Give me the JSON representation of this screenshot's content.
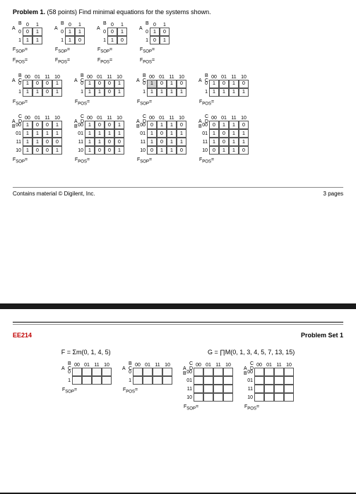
{
  "problem_title_prefix": "Problem 1.",
  "problem_title_rest": " (58 points) Find minimal equations for the systems shown.",
  "labels": {
    "A": "A",
    "B": "B",
    "C": "C",
    "D": "D",
    "AB": "A B",
    "BC": "B C",
    "CD": "C D",
    "Fsop": "F",
    "sop": "SOP",
    "Fpos": "F",
    "pos": "POS",
    "eq": "="
  },
  "cols2": [
    "0",
    "1"
  ],
  "cols4": [
    "00",
    "01",
    "11",
    "10"
  ],
  "rows2": [
    "0",
    "1"
  ],
  "rows4": [
    "00",
    "01",
    "11",
    "10"
  ],
  "kmaps2x2": [
    {
      "data": [
        [
          "0",
          "1"
        ],
        [
          "1",
          "1"
        ]
      ],
      "sh": [
        [
          0,
          0
        ],
        [
          0,
          0
        ]
      ]
    },
    {
      "data": [
        [
          "1",
          "1"
        ],
        [
          "1",
          "0"
        ]
      ],
      "sh": [
        [
          0,
          0
        ],
        [
          0,
          0
        ]
      ]
    },
    {
      "data": [
        [
          "0",
          "1"
        ],
        [
          "1",
          "0"
        ]
      ],
      "sh": [
        [
          0,
          0
        ],
        [
          0,
          0
        ]
      ]
    },
    {
      "data": [
        [
          "1",
          "0"
        ],
        [
          "0",
          "1"
        ]
      ],
      "sh": [
        [
          0,
          0
        ],
        [
          0,
          0
        ]
      ]
    }
  ],
  "kmaps2x4": [
    {
      "data": [
        [
          "1",
          "0",
          "0",
          "1"
        ],
        [
          "1",
          "1",
          "0",
          "1"
        ]
      ],
      "sh": [
        [
          0,
          0,
          0,
          0
        ],
        [
          0,
          0,
          0,
          0
        ]
      ]
    },
    {
      "data": [
        [
          "1",
          "0",
          "0",
          "1"
        ],
        [
          "1",
          "1",
          "0",
          "1"
        ]
      ],
      "sh": [
        [
          0,
          0,
          0,
          0
        ],
        [
          0,
          0,
          0,
          0
        ]
      ]
    },
    {
      "data": [
        [
          "1",
          "0",
          "1",
          "0"
        ],
        [
          "1",
          "1",
          "1",
          "1"
        ]
      ],
      "sh": [
        [
          1,
          0,
          0,
          0
        ],
        [
          0,
          0,
          0,
          0
        ]
      ]
    },
    {
      "data": [
        [
          "1",
          "0",
          "1",
          "0"
        ],
        [
          "1",
          "1",
          "1",
          "1"
        ]
      ],
      "sh": [
        [
          0,
          0,
          0,
          0
        ],
        [
          0,
          0,
          0,
          0
        ]
      ]
    }
  ],
  "kmaps4x4": [
    {
      "data": [
        [
          "1",
          "0",
          "0",
          "1"
        ],
        [
          "1",
          "1",
          "1",
          "1"
        ],
        [
          "1",
          "1",
          "0",
          "0"
        ],
        [
          "1",
          "0",
          "0",
          "1"
        ]
      ],
      "sh": [
        [
          0,
          0,
          0,
          0
        ],
        [
          0,
          0,
          0,
          0
        ],
        [
          0,
          0,
          0,
          0
        ],
        [
          0,
          0,
          0,
          0
        ]
      ]
    },
    {
      "data": [
        [
          "1",
          "0",
          "0",
          "1"
        ],
        [
          "1",
          "1",
          "1",
          "1"
        ],
        [
          "1",
          "1",
          "0",
          "0"
        ],
        [
          "1",
          "0",
          "0",
          "1"
        ]
      ],
      "sh": [
        [
          0,
          0,
          0,
          0
        ],
        [
          0,
          0,
          0,
          0
        ],
        [
          0,
          0,
          0,
          0
        ],
        [
          0,
          0,
          0,
          0
        ]
      ]
    },
    {
      "data": [
        [
          "0",
          "1",
          "1",
          "0"
        ],
        [
          "1",
          "0",
          "1",
          "1"
        ],
        [
          "1",
          "0",
          "1",
          "1"
        ],
        [
          "0",
          "1",
          "1",
          "0"
        ]
      ],
      "sh": [
        [
          0,
          0,
          0,
          0
        ],
        [
          0,
          0,
          0,
          0
        ],
        [
          0,
          0,
          0,
          0
        ],
        [
          0,
          0,
          0,
          0
        ]
      ]
    },
    {
      "data": [
        [
          "0",
          "1",
          "1",
          "0"
        ],
        [
          "1",
          "0",
          "1",
          "1"
        ],
        [
          "1",
          "0",
          "1",
          "1"
        ],
        [
          "0",
          "1",
          "1",
          "0"
        ]
      ],
      "sh": [
        [
          0,
          0,
          0,
          0
        ],
        [
          0,
          0,
          0,
          0
        ],
        [
          0,
          0,
          0,
          0
        ],
        [
          0,
          0,
          0,
          0
        ]
      ]
    }
  ],
  "footer_left": "Contains material © Digilent, Inc.",
  "footer_right": "3 pages",
  "course": "EE214",
  "pset": "Problem Set 1",
  "eqF": "F = Σm(0, 1, 4, 5)",
  "eqG": "G = ∏M(0, 1, 3, 4, 5, 7, 13, 15)",
  "p2_2x4_count": 2,
  "p2_4x4_count": 2
}
